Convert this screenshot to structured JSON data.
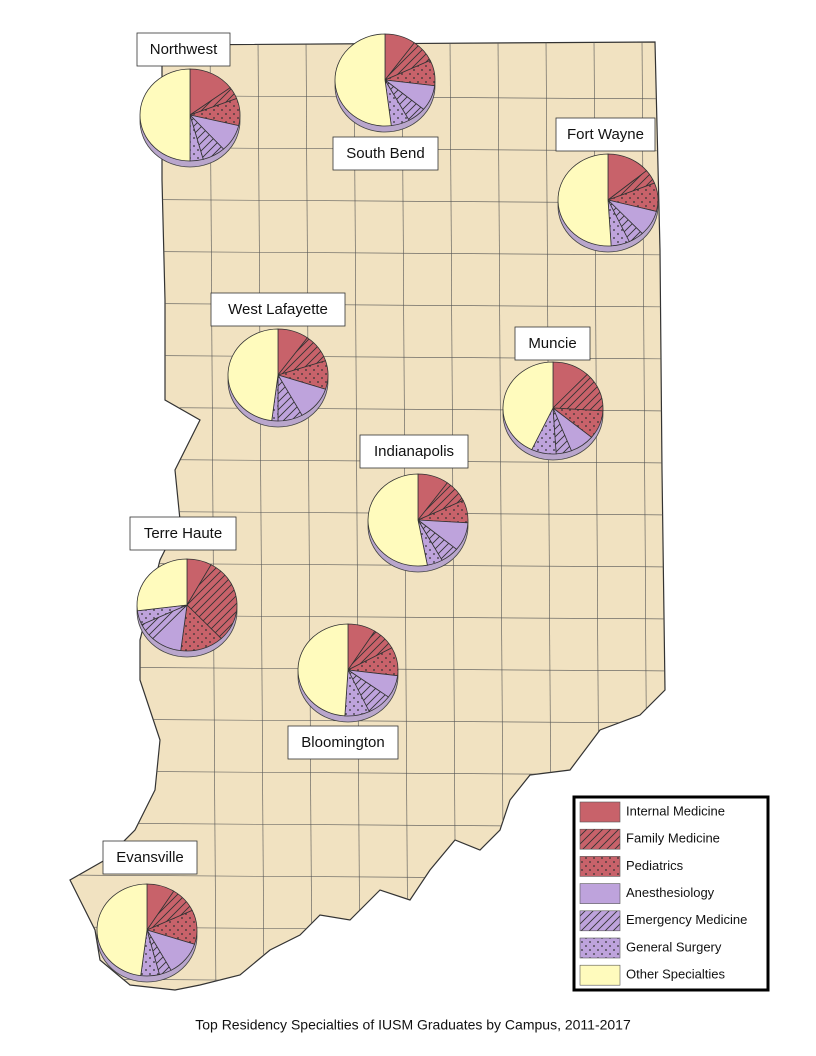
{
  "title": "Top Residency Specialties of IUSM Graduates by Campus, 2011-2017",
  "legend": {
    "items": [
      {
        "name": "Internal Medicine",
        "color": "#c8626a",
        "pattern": "solid"
      },
      {
        "name": "Family Medicine",
        "color": "#c8626a",
        "pattern": "hatch"
      },
      {
        "name": "Pediatrics",
        "color": "#c8626a",
        "pattern": "dots"
      },
      {
        "name": "Anesthesiology",
        "color": "#bea3dc",
        "pattern": "solid"
      },
      {
        "name": "Emergency Medicine",
        "color": "#bea3dc",
        "pattern": "hatch"
      },
      {
        "name": "General Surgery",
        "color": "#bea3dc",
        "pattern": "dots"
      },
      {
        "name": "Other Specialties",
        "color": "#fffbbd",
        "pattern": "solid"
      }
    ]
  },
  "campuses": [
    {
      "name": "Northwest",
      "values": [
        14,
        4,
        9,
        9,
        7,
        4,
        47
      ]
    },
    {
      "name": "South Bend",
      "values": [
        10,
        8,
        9,
        9,
        6,
        6,
        52
      ]
    },
    {
      "name": "Fort Wayne",
      "values": [
        14,
        5,
        10,
        9,
        5,
        6,
        51
      ]
    },
    {
      "name": "West Lafayette",
      "values": [
        10,
        10,
        10,
        12,
        8,
        2,
        48
      ]
    },
    {
      "name": "Muncie",
      "values": [
        12,
        14,
        10,
        8,
        5,
        8,
        43
      ]
    },
    {
      "name": "Indianapolis",
      "values": [
        10,
        8,
        8,
        10,
        6,
        5,
        53
      ]
    },
    {
      "name": "Terre Haute",
      "values": [
        8,
        30,
        14,
        10,
        6,
        5,
        27
      ]
    },
    {
      "name": "Bloomington",
      "values": [
        9,
        8,
        10,
        8,
        8,
        8,
        49
      ]
    },
    {
      "name": "Evansville",
      "values": [
        9,
        9,
        12,
        12,
        4,
        6,
        48
      ]
    }
  ]
}
